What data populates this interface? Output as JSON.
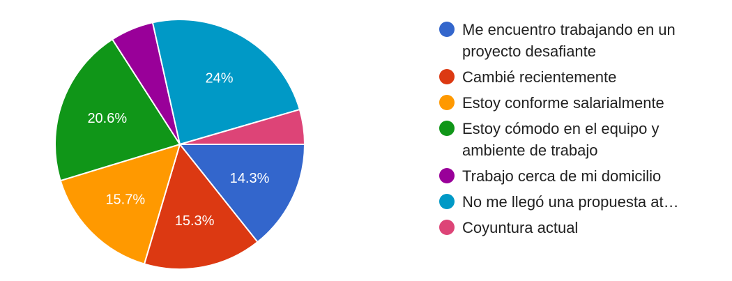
{
  "chart_data": {
    "type": "pie",
    "title": "",
    "legend_position": "right",
    "slices": [
      {
        "label": "Me encuentro trabajando en un proyecto desafiante",
        "legend_lines": [
          "Me encuentro trabajando en un",
          "proyecto desafiante"
        ],
        "value": 14.3,
        "display": "14.3%",
        "color": "#3366cc"
      },
      {
        "label": "Cambié recientemente",
        "legend_lines": [
          "Cambié recientemente"
        ],
        "value": 15.3,
        "display": "15.3%",
        "color": "#dc3912"
      },
      {
        "label": "Estoy conforme salarialmente",
        "legend_lines": [
          "Estoy conforme salarialmente"
        ],
        "value": 15.7,
        "display": "15.7%",
        "color": "#ff9900"
      },
      {
        "label": "Estoy cómodo en el equipo y ambiente de trabajo",
        "legend_lines": [
          "Estoy cómodo en el equipo y",
          "ambiente de trabajo"
        ],
        "value": 20.6,
        "display": "20.6%",
        "color": "#109618"
      },
      {
        "label": "Trabajo cerca de mi domicilio",
        "legend_lines": [
          "Trabajo cerca de mi domicilio"
        ],
        "value": 5.6,
        "display": "",
        "color": "#990099"
      },
      {
        "label": "No me llegó una propuesta at…",
        "legend_lines": [
          "No me llegó una propuesta at…"
        ],
        "value": 24,
        "display": "24%",
        "color": "#0099c6"
      },
      {
        "label": "Coyuntura actual",
        "legend_lines": [
          "Coyuntura actual"
        ],
        "value": 4.5,
        "display": "",
        "color": "#dd4477"
      }
    ]
  }
}
